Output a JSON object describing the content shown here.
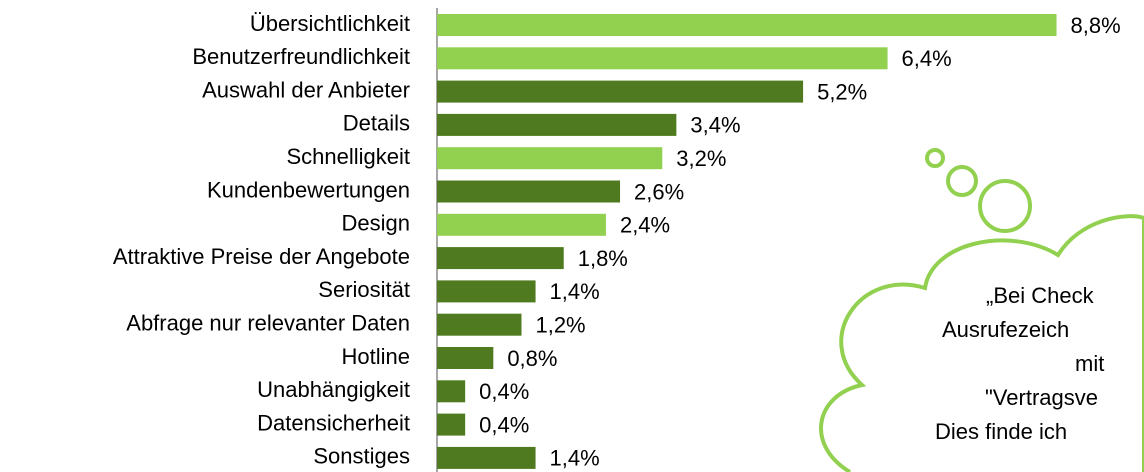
{
  "chart_data": {
    "type": "bar",
    "orientation": "horizontal",
    "categories": [
      "Übersichtlichkeit",
      "Benutzerfreundlichkeit",
      "Auswahl der Anbieter",
      "Details",
      "Schnelligkeit",
      "Kundenbewertungen",
      "Design",
      "Attraktive Preise der Angebote",
      "Seriosität",
      "Abfrage nur relevanter Daten",
      "Hotline",
      "Unabhängigkeit",
      "Datensicherheit",
      "Sonstiges"
    ],
    "values": [
      8.8,
      6.4,
      5.2,
      3.4,
      3.2,
      2.6,
      2.4,
      1.8,
      1.4,
      1.2,
      0.8,
      0.4,
      0.4,
      1.4
    ],
    "value_labels": [
      "8,8%",
      "6,4%",
      "5,2%",
      "3,4%",
      "3,2%",
      "2,6%",
      "2,4%",
      "1,8%",
      "1,4%",
      "1,2%",
      "0,8%",
      "0,4%",
      "0,4%",
      "1,4%"
    ],
    "colors": [
      "#92d050",
      "#92d050",
      "#4f7a1f",
      "#4f7a1f",
      "#92d050",
      "#4f7a1f",
      "#92d050",
      "#4f7a1f",
      "#4f7a1f",
      "#4f7a1f",
      "#4f7a1f",
      "#4f7a1f",
      "#4f7a1f",
      "#4f7a1f"
    ],
    "xlim": [
      0,
      10
    ],
    "annotation": [
      "„Bei Check",
      "Ausrufezeich",
      "mit",
      "\"Vertragsve",
      "Dies finde ich"
    ]
  }
}
